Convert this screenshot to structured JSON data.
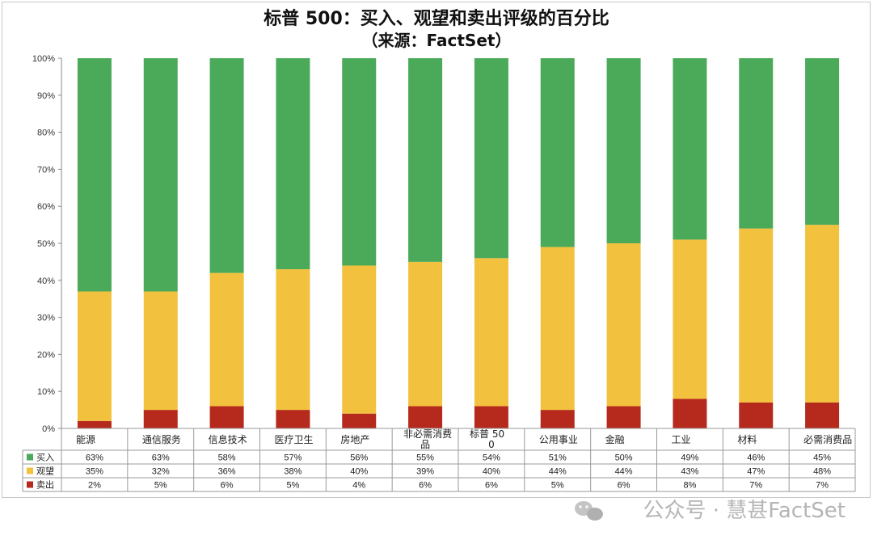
{
  "chart_data": {
    "type": "bar",
    "stacked": true,
    "title": "标普 500：买入、观望和卖出评级的百分比",
    "subtitle": "（来源：FactSet）",
    "categories": [
      "能源",
      "通信服务",
      "信息技术",
      "医疗卫生",
      "房地产",
      "非必需消费品",
      "标普 500",
      "公用事业",
      "金融",
      "工业",
      "材料",
      "必需消费品"
    ],
    "series": [
      {
        "name": "买入",
        "color": "#4aaa5a",
        "values": [
          63,
          63,
          58,
          57,
          56,
          55,
          54,
          51,
          50,
          49,
          46,
          45
        ]
      },
      {
        "name": "观望",
        "color": "#f2c13e",
        "values": [
          35,
          32,
          36,
          38,
          40,
          39,
          40,
          44,
          44,
          43,
          47,
          48
        ]
      },
      {
        "name": "卖出",
        "color": "#b52a1c",
        "values": [
          2,
          5,
          6,
          5,
          4,
          6,
          6,
          5,
          6,
          8,
          7,
          7
        ]
      }
    ],
    "table_labels": [
      [
        "63%",
        "63%",
        "58%",
        "57%",
        "56%",
        "55%",
        "54%",
        "51%",
        "50%",
        "49%",
        "46%",
        "45%"
      ],
      [
        "35%",
        "32%",
        "36%",
        "38%",
        "40%",
        "39%",
        "40%",
        "44%",
        "44%",
        "43%",
        "47%",
        "48%"
      ],
      [
        "2%",
        "5%",
        "6%",
        "5%",
        "4%",
        "6%",
        "6%",
        "5%",
        "6%",
        "8%",
        "7%",
        "7%"
      ]
    ],
    "yticks": [
      "0%",
      "10%",
      "20%",
      "30%",
      "40%",
      "50%",
      "60%",
      "70%",
      "80%",
      "90%",
      "100%"
    ],
    "ylim": [
      0,
      100
    ],
    "grid": false,
    "legend": "left of data table"
  },
  "watermark": {
    "icon": "wechat-icon",
    "text": "公众号 · 慧甚FactSet"
  }
}
